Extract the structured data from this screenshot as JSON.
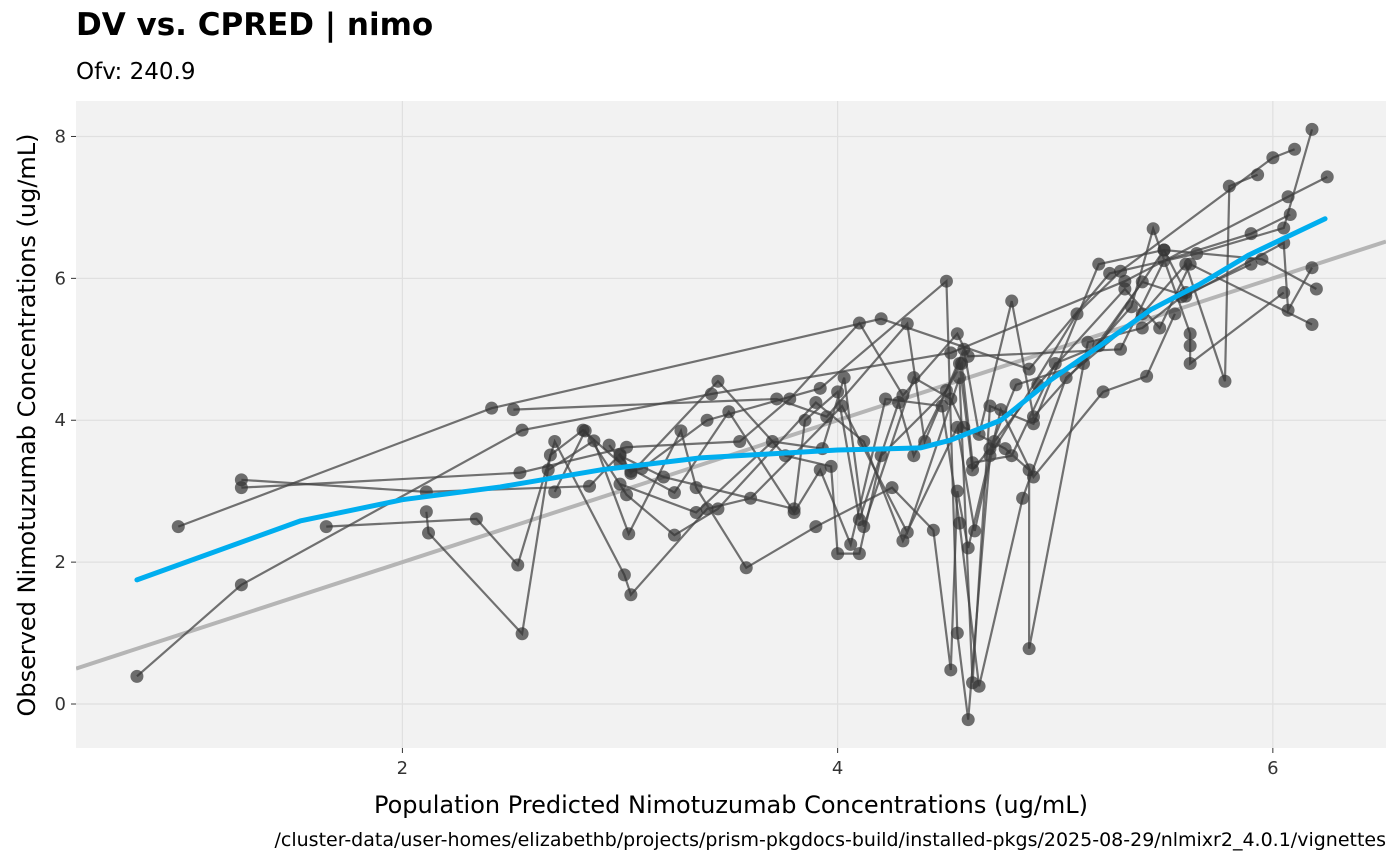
{
  "chart_data": {
    "type": "scatter",
    "title": "DV vs. CPRED | nimo",
    "subtitle": "Ofv: 240.9",
    "xlabel": "Population Predicted Nimotuzumab Concentrations (ug/mL)",
    "ylabel": "Observed Nimotuzumab Concentrations (ug/mL)",
    "caption": "/cluster-data/user-homes/elizabethb/projects/prism-pkgdocs-build/installed-pkgs/2025-08-29/nlmixr2_4.0.1/vignettes",
    "xlim": [
      0.5,
      6.52
    ],
    "ylim": [
      -0.62,
      8.5
    ],
    "x_ticks": [
      2,
      4,
      6
    ],
    "y_ticks": [
      0,
      2,
      4,
      6,
      8
    ],
    "grid": true,
    "colors": {
      "panel": "#F2F2F2",
      "grid": "#E0E0E0",
      "points": "#333333",
      "lines": "#444444",
      "smooth": "#00AEEF",
      "identity": "#B5B5B5"
    },
    "identity_line": {
      "slope": 1,
      "intercept": 0
    },
    "smooth": [
      [
        0.78,
        1.75
      ],
      [
        1.53,
        2.58
      ],
      [
        2.0,
        2.88
      ],
      [
        2.45,
        3.06
      ],
      [
        2.91,
        3.3
      ],
      [
        3.37,
        3.47
      ],
      [
        4.0,
        3.58
      ],
      [
        4.38,
        3.61
      ],
      [
        4.52,
        3.72
      ],
      [
        4.75,
        4.0
      ],
      [
        4.98,
        4.57
      ],
      [
        5.21,
        5.06
      ],
      [
        5.44,
        5.56
      ],
      [
        5.66,
        5.91
      ],
      [
        5.89,
        6.33
      ],
      [
        6.24,
        6.84
      ]
    ],
    "individuals": [
      [
        [
          0.78,
          0.39
        ],
        [
          1.26,
          1.68
        ],
        [
          2.55,
          3.86
        ],
        [
          3.42,
          4.37
        ],
        [
          4.52,
          4.95
        ],
        [
          5.32,
          5.96
        ],
        [
          6.07,
          7.15
        ],
        [
          6.25,
          7.43
        ]
      ],
      [
        [
          0.97,
          2.5
        ],
        [
          2.41,
          4.17
        ],
        [
          4.2,
          5.43
        ],
        [
          4.88,
          4.72
        ],
        [
          5.25,
          6.07
        ],
        [
          5.65,
          6.35
        ],
        [
          6.05,
          6.71
        ],
        [
          6.18,
          8.1
        ]
      ],
      [
        [
          1.26,
          3.16
        ],
        [
          2.11,
          2.99
        ],
        [
          2.86,
          3.07
        ],
        [
          3.0,
          3.52
        ],
        [
          3.05,
          3.28
        ],
        [
          3.1,
          3.32
        ],
        [
          3.4,
          4.0
        ],
        [
          3.92,
          4.45
        ],
        [
          4.5,
          5.96
        ],
        [
          4.55,
          1.0
        ],
        [
          4.6,
          -0.22
        ],
        [
          4.7,
          3.5
        ],
        [
          5.1,
          5.5
        ],
        [
          5.3,
          6.1
        ],
        [
          6.0,
          7.7
        ],
        [
          6.1,
          7.82
        ]
      ],
      [
        [
          1.26,
          3.05
        ],
        [
          2.54,
          3.26
        ],
        [
          3.03,
          3.62
        ],
        [
          3.55,
          3.7
        ],
        [
          3.78,
          4.3
        ],
        [
          4.1,
          5.37
        ],
        [
          4.3,
          4.35
        ],
        [
          4.55,
          5.22
        ],
        [
          4.6,
          4.9
        ],
        [
          5.3,
          5.0
        ],
        [
          5.5,
          6.25
        ],
        [
          5.9,
          6.63
        ],
        [
          6.08,
          6.9
        ]
      ],
      [
        [
          1.65,
          2.5
        ],
        [
          2.34,
          2.61
        ],
        [
          2.53,
          1.96
        ],
        [
          2.7,
          3.7
        ],
        [
          3.02,
          1.82
        ],
        [
          3.05,
          1.54
        ],
        [
          3.4,
          2.75
        ],
        [
          3.6,
          2.9
        ],
        [
          4.02,
          4.2
        ],
        [
          4.32,
          2.42
        ],
        [
          4.56,
          4.6
        ],
        [
          4.62,
          0.3
        ],
        [
          4.7,
          4.2
        ],
        [
          4.9,
          3.95
        ],
        [
          5.2,
          6.2
        ],
        [
          5.5,
          6.4
        ],
        [
          5.6,
          5.8
        ]
      ],
      [
        [
          2.11,
          2.71
        ],
        [
          2.12,
          2.41
        ],
        [
          2.55,
          0.99
        ],
        [
          2.68,
          3.51
        ],
        [
          2.83,
          3.86
        ],
        [
          3.0,
          3.4
        ],
        [
          3.25,
          2.98
        ],
        [
          3.5,
          4.12
        ],
        [
          3.8,
          2.7
        ],
        [
          3.92,
          3.3
        ],
        [
          4.06,
          2.25
        ],
        [
          4.22,
          4.3
        ],
        [
          4.48,
          4.2
        ],
        [
          4.56,
          2.55
        ],
        [
          4.65,
          0.25
        ],
        [
          4.85,
          2.9
        ],
        [
          5.05,
          4.6
        ],
        [
          5.4,
          5.5
        ],
        [
          5.6,
          6.2
        ],
        [
          5.78,
          4.55
        ],
        [
          5.8,
          7.3
        ],
        [
          5.93,
          7.46
        ]
      ],
      [
        [
          2.51,
          4.15
        ],
        [
          3.72,
          4.3
        ],
        [
          3.95,
          4.05
        ],
        [
          4.32,
          5.36
        ],
        [
          4.4,
          3.7
        ],
        [
          4.58,
          5.0
        ],
        [
          4.65,
          3.8
        ],
        [
          4.8,
          5.68
        ],
        [
          4.9,
          4.05
        ],
        [
          5.35,
          5.6
        ],
        [
          5.45,
          6.7
        ],
        [
          5.62,
          5.22
        ],
        [
          5.62,
          5.05
        ],
        [
          5.62,
          4.8
        ],
        [
          6.05,
          5.8
        ]
      ],
      [
        [
          2.67,
          3.3
        ],
        [
          2.88,
          3.71
        ],
        [
          3.04,
          2.4
        ],
        [
          3.28,
          3.85
        ],
        [
          3.35,
          3.05
        ],
        [
          3.58,
          1.92
        ],
        [
          3.9,
          2.5
        ],
        [
          4.25,
          3.05
        ],
        [
          4.44,
          2.45
        ],
        [
          4.52,
          0.48
        ],
        [
          4.55,
          3.0
        ],
        [
          4.6,
          2.2
        ],
        [
          4.75,
          4.15
        ],
        [
          4.9,
          3.2
        ],
        [
          5.22,
          4.4
        ],
        [
          5.42,
          4.62
        ],
        [
          5.55,
          5.5
        ]
      ],
      [
        [
          2.7,
          2.99
        ],
        [
          2.84,
          3.85
        ],
        [
          3.03,
          2.95
        ],
        [
          3.25,
          2.38
        ],
        [
          3.45,
          2.75
        ],
        [
          3.9,
          4.25
        ],
        [
          4.12,
          3.7
        ],
        [
          4.3,
          2.3
        ],
        [
          4.55,
          3.9
        ],
        [
          4.63,
          2.44
        ],
        [
          4.72,
          3.7
        ],
        [
          4.92,
          4.5
        ],
        [
          5.32,
          5.85
        ],
        [
          5.48,
          5.3
        ],
        [
          5.62,
          6.2
        ],
        [
          6.18,
          5.35
        ]
      ],
      [
        [
          3.0,
          3.5
        ],
        [
          3.2,
          3.2
        ],
        [
          3.8,
          2.75
        ],
        [
          3.85,
          4.0
        ],
        [
          4.0,
          4.4
        ],
        [
          4.1,
          2.6
        ],
        [
          4.28,
          4.25
        ],
        [
          4.35,
          3.5
        ],
        [
          4.56,
          4.8
        ],
        [
          4.62,
          3.3
        ],
        [
          4.7,
          3.6
        ],
        [
          4.82,
          4.5
        ],
        [
          5.13,
          4.8
        ],
        [
          5.4,
          5.95
        ],
        [
          5.6,
          5.75
        ],
        [
          6.05,
          6.5
        ],
        [
          6.07,
          5.55
        ],
        [
          6.18,
          6.15
        ]
      ],
      [
        [
          2.95,
          3.65
        ],
        [
          3.05,
          3.25
        ],
        [
          3.45,
          4.55
        ],
        [
          3.76,
          3.5
        ],
        [
          3.97,
          3.35
        ],
        [
          4.0,
          2.12
        ],
        [
          4.1,
          2.12
        ],
        [
          4.2,
          3.5
        ],
        [
          4.5,
          4.42
        ],
        [
          4.57,
          4.8
        ],
        [
          4.62,
          3.4
        ],
        [
          4.8,
          3.5
        ],
        [
          5.0,
          4.8
        ],
        [
          5.2,
          5.05
        ],
        [
          5.5,
          6.4
        ],
        [
          5.95,
          6.27
        ],
        [
          6.2,
          5.85
        ]
      ],
      [
        [
          3.0,
          3.1
        ],
        [
          3.35,
          2.7
        ],
        [
          3.7,
          3.7
        ],
        [
          3.93,
          3.6
        ],
        [
          4.03,
          4.6
        ],
        [
          4.12,
          2.5
        ],
        [
          4.35,
          4.6
        ],
        [
          4.52,
          4.3
        ],
        [
          4.58,
          3.9
        ],
        [
          4.77,
          3.6
        ],
        [
          4.88,
          3.3
        ],
        [
          4.88,
          0.78
        ],
        [
          5.15,
          5.1
        ],
        [
          5.4,
          5.3
        ],
        [
          5.58,
          5.74
        ],
        [
          5.9,
          6.2
        ]
      ]
    ]
  }
}
